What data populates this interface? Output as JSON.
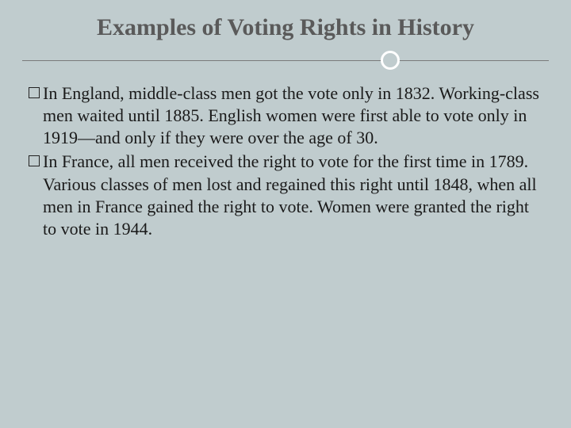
{
  "slide": {
    "title": "Examples of Voting Rights in History",
    "background_color": "#c0ccce",
    "title_color": "#5a5a5a",
    "title_fontsize": 30,
    "body_text_color": "#1a1a1a",
    "body_fontsize": 22,
    "divider": {
      "line_color": "#7a7a7a",
      "circle_border_color": "#ffffff",
      "circle_border_width": 3,
      "circle_position_pct": 68
    },
    "bullets": [
      {
        "text": "In England, middle-class men got the vote only in 1832. Working-class men waited until 1885. English women were first able to vote only in 1919—and only if they were over the age of 30."
      },
      {
        "text": "In France, all men received the right to vote for the first time in 1789. Various classes of men lost and regained this right until 1848, when all men in France gained the right to vote. Women were granted the right to vote in 1944."
      }
    ]
  }
}
